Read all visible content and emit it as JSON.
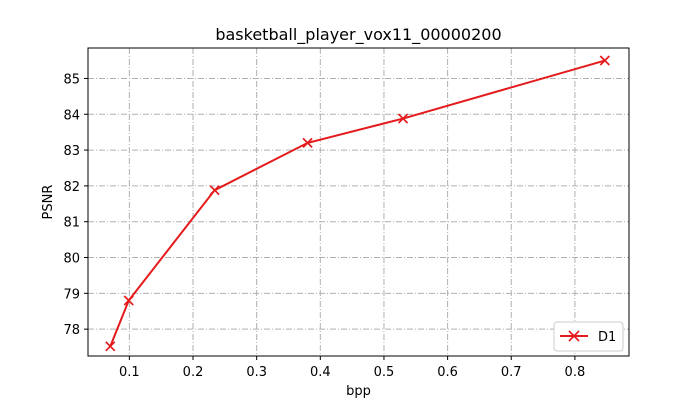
{
  "chart_data": {
    "type": "line",
    "title": "basketball_player_vox11_00000200",
    "xlabel": "bpp",
    "ylabel": "PSNR",
    "xlim": [
      0.035,
      0.885
    ],
    "ylim": [
      77.25,
      85.85
    ],
    "x_ticks": [
      0.1,
      0.2,
      0.3,
      0.4,
      0.5,
      0.6,
      0.7,
      0.8
    ],
    "y_ticks": [
      78,
      79,
      80,
      81,
      82,
      83,
      84,
      85
    ],
    "x_tick_labels": [
      "0.1",
      "0.2",
      "0.3",
      "0.4",
      "0.5",
      "0.6",
      "0.7",
      "0.8"
    ],
    "y_tick_labels": [
      "78",
      "79",
      "80",
      "81",
      "82",
      "83",
      "84",
      "85"
    ],
    "grid": true,
    "legend_position": "bottom-right",
    "series": [
      {
        "name": "D1",
        "color": "#e41a1c",
        "marker": "x",
        "x": [
          0.07,
          0.099,
          0.234,
          0.38,
          0.53,
          0.847
        ],
        "y": [
          77.52,
          78.8,
          81.88,
          83.2,
          83.88,
          85.5
        ]
      }
    ]
  }
}
